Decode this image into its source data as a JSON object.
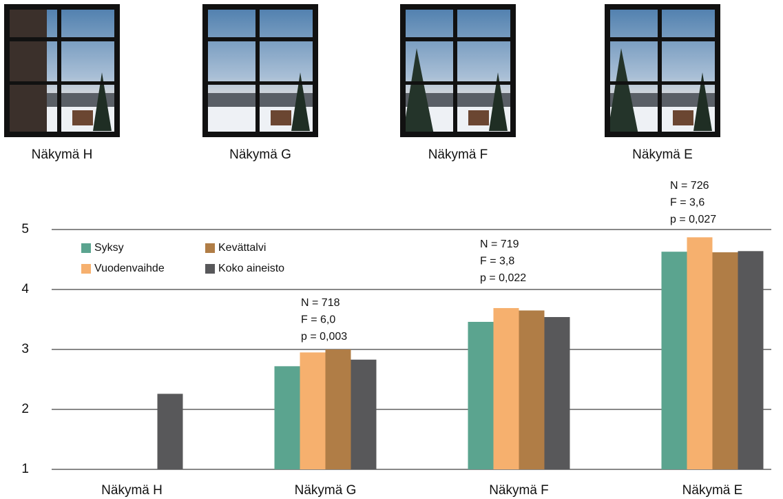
{
  "photo_labels": [
    "Näkymä H",
    "Näkymä G",
    "Näkymä F",
    "Näkymä E"
  ],
  "chart_data": {
    "type": "bar",
    "categories": [
      "Näkymä H",
      "Näkymä G",
      "Näkymä F",
      "Näkymä E"
    ],
    "series": [
      {
        "name": "Syksy",
        "color": "#5ba48f",
        "values": [
          null,
          2.72,
          3.46,
          4.63
        ]
      },
      {
        "name": "Vuodenvaihde",
        "color": "#f6b06e",
        "values": [
          null,
          2.95,
          3.69,
          4.87
        ]
      },
      {
        "name": "Kevättalvi",
        "color": "#b07d46",
        "values": [
          null,
          3.0,
          3.65,
          4.62
        ]
      },
      {
        "name": "Koko aineisto",
        "color": "#58585a",
        "values": [
          2.26,
          2.83,
          3.54,
          4.64
        ]
      }
    ],
    "annotations": [
      [
        "N = 718",
        "F = 6,0",
        "p = 0,003"
      ],
      [
        "N = 719",
        "F = 3,8",
        "p = 0,022"
      ],
      [
        "N = 726",
        "F = 3,6",
        "p = 0,027"
      ]
    ],
    "ylim": [
      1,
      5
    ],
    "yticks": [
      1,
      2,
      3,
      4,
      5
    ],
    "grid": true,
    "legend": "top-left"
  }
}
